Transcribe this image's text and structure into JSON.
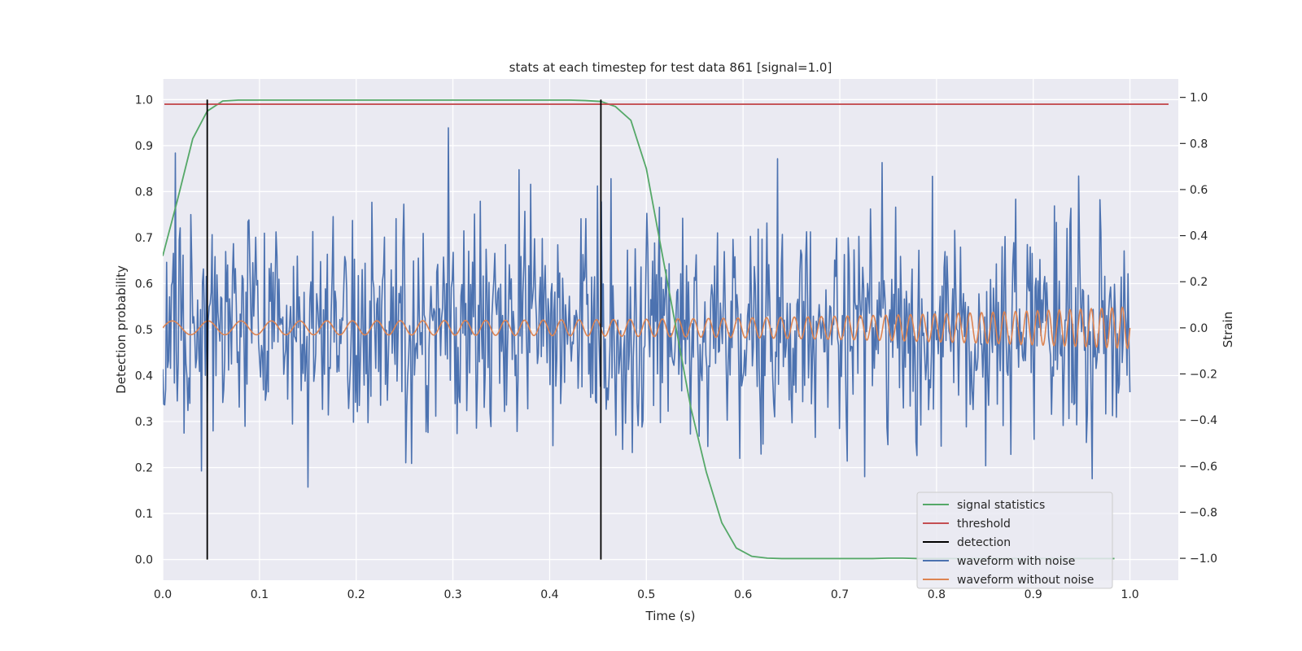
{
  "chart_data": {
    "type": "line",
    "title": "stats at each timestep for test data 861 [signal=1.0]",
    "xlabel": "Time (s)",
    "ylabel": "Detection probability",
    "y2label": "Strain",
    "xlim": [
      0.0,
      1.05
    ],
    "ylim": [
      -0.045,
      1.045
    ],
    "y2lim": [
      -1.095,
      1.08
    ],
    "xticks": [
      "0.0",
      "0.1",
      "0.2",
      "0.3",
      "0.4",
      "0.5",
      "0.6",
      "0.7",
      "0.8",
      "0.9",
      "1.0"
    ],
    "yticks": [
      "0.0",
      "0.1",
      "0.2",
      "0.3",
      "0.4",
      "0.5",
      "0.6",
      "0.7",
      "0.8",
      "0.9",
      "1.0"
    ],
    "y2ticks": [
      "−1.0",
      "−0.8",
      "−0.6",
      "−0.4",
      "−0.2",
      "0.0",
      "0.2",
      "0.4",
      "0.6",
      "0.8",
      "1.0"
    ],
    "grid": true,
    "legend_position": "lower-right",
    "colors": {
      "signal": "#55a868",
      "threshold": "#c44e52",
      "detection": "#000000",
      "noisy": "#4c72b0",
      "clean": "#dd8452",
      "plot_bg": "#eaeaf2",
      "grid": "#ffffff"
    },
    "legend": [
      {
        "label": "signal statistics",
        "color": "#55a868"
      },
      {
        "label": "threshold",
        "color": "#c44e52"
      },
      {
        "label": "detection",
        "color": "#000000"
      },
      {
        "label": "waveform with noise",
        "color": "#4c72b0"
      },
      {
        "label": "waveform without noise",
        "color": "#dd8452"
      }
    ],
    "threshold": 0.99,
    "detections": [
      0.046,
      0.453
    ],
    "signal_statistics": {
      "x": [
        0.0,
        0.015,
        0.031,
        0.046,
        0.062,
        0.078,
        0.093,
        0.109,
        0.125,
        0.14,
        0.156,
        0.171,
        0.187,
        0.203,
        0.218,
        0.234,
        0.25,
        0.265,
        0.281,
        0.296,
        0.312,
        0.328,
        0.343,
        0.359,
        0.375,
        0.39,
        0.406,
        0.421,
        0.437,
        0.453,
        0.468,
        0.484,
        0.5,
        0.515,
        0.531,
        0.546,
        0.562,
        0.578,
        0.593,
        0.609,
        0.625,
        0.64,
        0.656,
        0.671,
        0.687,
        0.703,
        0.718,
        0.734,
        0.75,
        0.765,
        0.781,
        0.796,
        0.812,
        0.828,
        0.843,
        0.859,
        0.875,
        0.89,
        0.906,
        0.921,
        0.937,
        0.953,
        0.968,
        0.984
      ],
      "y": [
        0.66,
        0.78,
        0.915,
        0.975,
        0.997,
        0.999,
        0.999,
        0.999,
        0.999,
        0.999,
        0.999,
        0.999,
        0.999,
        0.999,
        0.999,
        0.999,
        0.999,
        0.999,
        0.999,
        0.999,
        0.999,
        0.999,
        0.999,
        0.999,
        0.999,
        0.999,
        0.999,
        0.999,
        0.998,
        0.996,
        0.985,
        0.955,
        0.85,
        0.68,
        0.5,
        0.33,
        0.19,
        0.08,
        0.025,
        0.007,
        0.003,
        0.002,
        0.002,
        0.002,
        0.002,
        0.002,
        0.002,
        0.002,
        0.003,
        0.003,
        0.002,
        0.002,
        0.002,
        0.002,
        0.002,
        0.002,
        0.002,
        0.002,
        0.002,
        0.002,
        0.002,
        0.002,
        0.002,
        0.002
      ]
    },
    "waveform_without_noise": {
      "x_range": [
        0.0,
        1.0
      ],
      "freq_start": 25,
      "freq_end": 95,
      "amp_start": 0.03,
      "amp_end": 0.09
    },
    "waveform_with_noise": {
      "x_range": [
        0.0,
        1.0
      ],
      "n_points": 1000,
      "std": 0.24,
      "min": -1.0,
      "max": 1.0
    }
  }
}
